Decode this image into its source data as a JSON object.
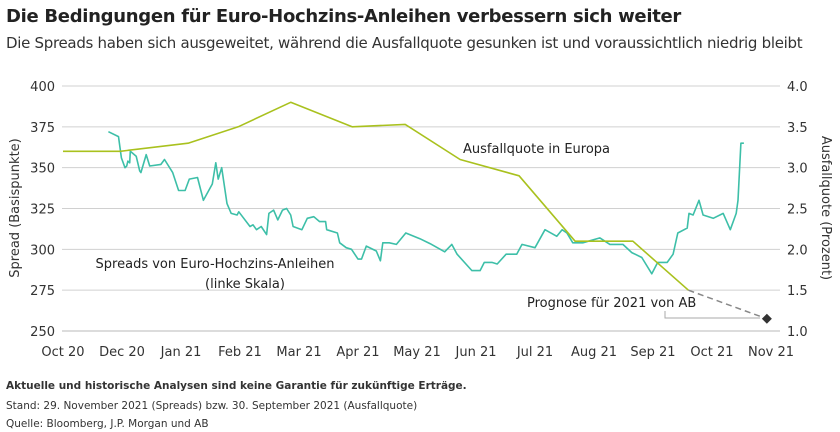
{
  "title": "Die Bedingungen für Euro-Hochzins-Anleihen verbessern sich weiter",
  "subtitle": "Die Spreads haben sich ausgeweitet, während die Ausfallquote gesunken ist und voraussichtlich niedrig bleibt",
  "footer": {
    "disclaimer": "Aktuelle und historische Analysen sind keine Garantie für zukünftige Erträge.",
    "stand": "Stand: 29. November 2021 (Spreads) bzw. 30. September 2021 (Ausfallquote)",
    "quelle": "Quelle: Bloomberg, J.P. Morgan und AB"
  },
  "chart_data": {
    "type": "line",
    "grid": true,
    "xlabel": "",
    "x_ticks": [
      "Oct 20",
      "Dec 20",
      "Jan 21",
      "Feb 21",
      "Mar 21",
      "Apr 21",
      "May 21",
      "Jun 21",
      "Jul 21",
      "Aug 21",
      "Sep 21",
      "Oct 21",
      "Nov 21"
    ],
    "y_left": {
      "label": "Spread (Basispunkte)",
      "lim": [
        250,
        400
      ],
      "ticks": [
        "250",
        "275",
        "300",
        "325",
        "350",
        "375",
        "400"
      ]
    },
    "y_right": {
      "label": "Ausfallquote (Prozent)",
      "lim": [
        1.0,
        4.0
      ],
      "ticks": [
        "1.0",
        "1.5",
        "2.0",
        "2.5",
        "3.0",
        "3.5",
        "4.0"
      ]
    },
    "colors": {
      "spread": "#3dbfa8",
      "default_rate": "#a9c11e",
      "forecast": "#888888",
      "forecast_marker": "#333333",
      "grid": "#d0d0d0"
    },
    "annotations": {
      "spread_label_1": "Spreads von Euro-Hochzins-Anleihen",
      "spread_label_2": "(linke Skala)",
      "default_label": "Ausfallquote in Europa",
      "forecast_label": "Prognose für 2021 von AB"
    },
    "series": [
      {
        "key": "spread",
        "axis": "left",
        "note": "x as position on tick scale",
        "points": [
          [
            0.77,
            372
          ],
          [
            0.94,
            369
          ],
          [
            0.99,
            356
          ],
          [
            1.05,
            350
          ],
          [
            1.08,
            351
          ],
          [
            1.1,
            354
          ],
          [
            1.13,
            353
          ],
          [
            1.14,
            360
          ],
          [
            1.24,
            357
          ],
          [
            1.3,
            348
          ],
          [
            1.32,
            347
          ],
          [
            1.41,
            358
          ],
          [
            1.47,
            351
          ],
          [
            1.66,
            352
          ],
          [
            1.72,
            355
          ],
          [
            1.86,
            347
          ],
          [
            1.96,
            336
          ],
          [
            2.07,
            336
          ],
          [
            2.14,
            343
          ],
          [
            2.28,
            344
          ],
          [
            2.38,
            330
          ],
          [
            2.53,
            340
          ],
          [
            2.59,
            353
          ],
          [
            2.63,
            343
          ],
          [
            2.69,
            350
          ],
          [
            2.78,
            328
          ],
          [
            2.85,
            322
          ],
          [
            2.95,
            321
          ],
          [
            2.98,
            323
          ],
          [
            3.17,
            314
          ],
          [
            3.22,
            315
          ],
          [
            3.28,
            312
          ],
          [
            3.36,
            314
          ],
          [
            3.45,
            309
          ],
          [
            3.49,
            322
          ],
          [
            3.57,
            324
          ],
          [
            3.64,
            318
          ],
          [
            3.72,
            324
          ],
          [
            3.79,
            325
          ],
          [
            3.86,
            321
          ],
          [
            3.9,
            314
          ],
          [
            4.05,
            312
          ],
          [
            4.14,
            319
          ],
          [
            4.25,
            320
          ],
          [
            4.35,
            317
          ],
          [
            4.45,
            317
          ],
          [
            4.47,
            312
          ],
          [
            4.65,
            310
          ],
          [
            4.69,
            304
          ],
          [
            4.8,
            301
          ],
          [
            4.89,
            300
          ],
          [
            5.0,
            294
          ],
          [
            5.06,
            294
          ],
          [
            5.14,
            302
          ],
          [
            5.31,
            299
          ],
          [
            5.38,
            293
          ],
          [
            5.42,
            304
          ],
          [
            5.53,
            304
          ],
          [
            5.65,
            303
          ],
          [
            5.81,
            310
          ],
          [
            6.05,
            306.5
          ],
          [
            6.22,
            303.5
          ],
          [
            6.47,
            298.5
          ],
          [
            6.59,
            303
          ],
          [
            6.68,
            297
          ],
          [
            6.93,
            287
          ],
          [
            7.07,
            287
          ],
          [
            7.14,
            292
          ],
          [
            7.27,
            292
          ],
          [
            7.36,
            291
          ],
          [
            7.51,
            297
          ],
          [
            7.69,
            297
          ],
          [
            7.78,
            303
          ],
          [
            8.0,
            301
          ],
          [
            8.17,
            312
          ],
          [
            8.37,
            308
          ],
          [
            8.46,
            312
          ],
          [
            8.54,
            310
          ],
          [
            8.64,
            304
          ],
          [
            8.81,
            304
          ],
          [
            9.1,
            307
          ],
          [
            9.27,
            303
          ],
          [
            9.49,
            303
          ],
          [
            9.64,
            298
          ],
          [
            9.81,
            295
          ],
          [
            9.98,
            285
          ],
          [
            10.08,
            292
          ],
          [
            10.24,
            292
          ],
          [
            10.34,
            297
          ],
          [
            10.42,
            310
          ],
          [
            10.58,
            313
          ],
          [
            10.61,
            322
          ],
          [
            10.68,
            321
          ],
          [
            10.78,
            330
          ],
          [
            10.85,
            321
          ],
          [
            11.02,
            319
          ],
          [
            11.19,
            322
          ],
          [
            11.31,
            312
          ],
          [
            11.41,
            322
          ],
          [
            11.44,
            330
          ],
          [
            11.49,
            365
          ],
          [
            11.54,
            365
          ]
        ]
      },
      {
        "key": "default_rate",
        "axis": "right",
        "points": [
          [
            0,
            3.2
          ],
          [
            0.97,
            3.2
          ],
          [
            2.12,
            3.3
          ],
          [
            2.97,
            3.5
          ],
          [
            3.86,
            3.8
          ],
          [
            4.9,
            3.5
          ],
          [
            5.8,
            3.53
          ],
          [
            6.73,
            3.1
          ],
          [
            7.73,
            2.9
          ],
          [
            8.68,
            2.1
          ],
          [
            9.66,
            2.1
          ],
          [
            10.6,
            1.5
          ]
        ]
      },
      {
        "key": "forecast",
        "axis": "right",
        "points": [
          [
            10.6,
            1.5
          ],
          [
            11.93,
            1.15
          ]
        ]
      }
    ]
  }
}
